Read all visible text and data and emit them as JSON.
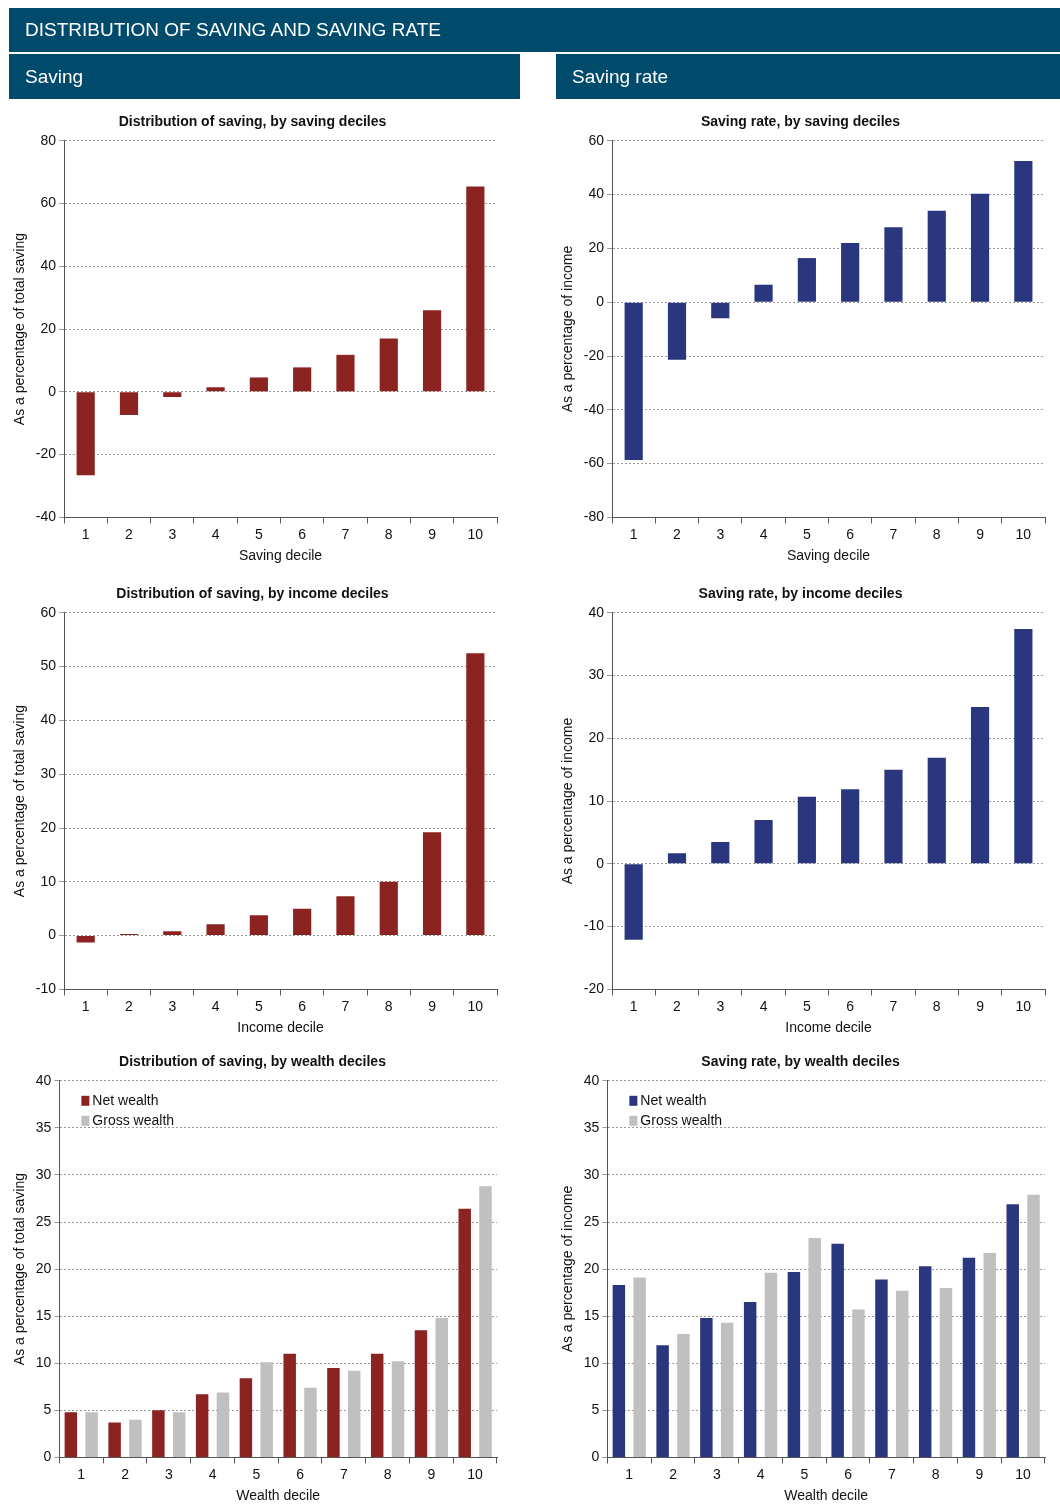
{
  "chart_data": [
    {
      "type": "other",
      "title": "DISTRIBUTION OF SAVING AND SAVING RATE",
      "annotations": [
        "Saving",
        "Saving rate"
      ]
    },
    {
      "type": "bar",
      "title": "Distribution of saving, by saving deciles",
      "xlabel": "Saving decile",
      "ylabel": "As a percentage of total saving",
      "categories": [
        "1",
        "2",
        "3",
        "4",
        "5",
        "6",
        "7",
        "8",
        "9",
        "10"
      ],
      "color": "#8b2320",
      "values": [
        -26.6,
        -7.4,
        -1.6,
        1.5,
        4.6,
        7.8,
        11.8,
        17.0,
        26.0,
        65.4
      ],
      "ylim": [
        -40,
        80
      ],
      "yticks": [
        -40,
        -20,
        0,
        20,
        40,
        60,
        80
      ],
      "grid": "y"
    },
    {
      "type": "bar",
      "title": "Saving rate, by saving deciles",
      "xlabel": "Saving decile",
      "ylabel": "As a percentage of income",
      "categories": [
        "1",
        "2",
        "3",
        "4",
        "5",
        "6",
        "7",
        "8",
        "9",
        "10"
      ],
      "color": "#2a377e",
      "values": [
        -58.7,
        -21.4,
        -6.0,
        6.5,
        16.4,
        22.0,
        27.9,
        34.0,
        40.3,
        52.5
      ],
      "ylim": [
        -80,
        60
      ],
      "yticks": [
        -80,
        -60,
        -40,
        -20,
        0,
        20,
        40,
        60
      ],
      "grid": "y"
    },
    {
      "type": "bar",
      "title": "Distribution of saving, by income deciles",
      "xlabel": "Income decile",
      "ylabel": "As a percentage of total saving",
      "categories": [
        "1",
        "2",
        "3",
        "4",
        "5",
        "6",
        "7",
        "8",
        "9",
        "10"
      ],
      "color": "#8b2320",
      "values": [
        -1.3,
        0.3,
        0.8,
        2.1,
        3.8,
        5.0,
        7.3,
        10.0,
        19.2,
        52.5
      ],
      "ylim": [
        -10,
        60
      ],
      "yticks": [
        -10,
        0,
        10,
        20,
        30,
        40,
        50,
        60
      ],
      "grid": "y"
    },
    {
      "type": "bar",
      "title": "Saving rate, by income deciles",
      "xlabel": "Income decile",
      "ylabel": "As a percentage of income",
      "categories": [
        "1",
        "2",
        "3",
        "4",
        "5",
        "6",
        "7",
        "8",
        "9",
        "10"
      ],
      "color": "#2a377e",
      "values": [
        -12.1,
        1.7,
        3.5,
        7.0,
        10.7,
        11.9,
        15.0,
        16.9,
        25.0,
        37.4
      ],
      "ylim": [
        -20,
        40
      ],
      "yticks": [
        -20,
        -10,
        0,
        10,
        20,
        30,
        40
      ],
      "grid": "y"
    },
    {
      "type": "bar",
      "title": "Distribution of saving, by wealth deciles",
      "xlabel": "Wealth decile",
      "ylabel": "As a percentage of total saving",
      "categories": [
        "1",
        "2",
        "3",
        "4",
        "5",
        "6",
        "7",
        "8",
        "9",
        "10"
      ],
      "series": [
        {
          "name": "Net wealth",
          "color": "#8b2320",
          "values": [
            4.8,
            3.7,
            5.0,
            6.7,
            8.4,
            11.0,
            9.5,
            11.0,
            13.5,
            26.4
          ]
        },
        {
          "name": "Gross wealth",
          "color": "#c0c0c0",
          "values": [
            4.8,
            4.0,
            4.8,
            6.9,
            10.1,
            7.4,
            9.2,
            10.2,
            14.8,
            28.8
          ]
        }
      ],
      "ylim": [
        0,
        40
      ],
      "yticks": [
        0,
        5,
        10,
        15,
        20,
        25,
        30,
        35,
        40
      ],
      "grid": "y",
      "legend": "top left"
    },
    {
      "type": "bar",
      "title": "Saving rate, by wealth deciles",
      "xlabel": "Wealth decile",
      "ylabel": "As a percentage of income",
      "categories": [
        "1",
        "2",
        "3",
        "4",
        "5",
        "6",
        "7",
        "8",
        "9",
        "10"
      ],
      "series": [
        {
          "name": "Net wealth",
          "color": "#2a377e",
          "values": [
            18.3,
            11.9,
            14.8,
            16.5,
            19.7,
            22.7,
            18.9,
            20.3,
            21.2,
            26.9
          ]
        },
        {
          "name": "Gross wealth",
          "color": "#c0c0c0",
          "values": [
            19.1,
            13.1,
            14.3,
            19.6,
            23.3,
            15.7,
            17.7,
            18.0,
            21.7,
            27.9
          ]
        }
      ],
      "ylim": [
        0,
        40
      ],
      "yticks": [
        0,
        5,
        10,
        15,
        20,
        25,
        30,
        35,
        40
      ],
      "grid": "y",
      "legend": "top left"
    }
  ]
}
